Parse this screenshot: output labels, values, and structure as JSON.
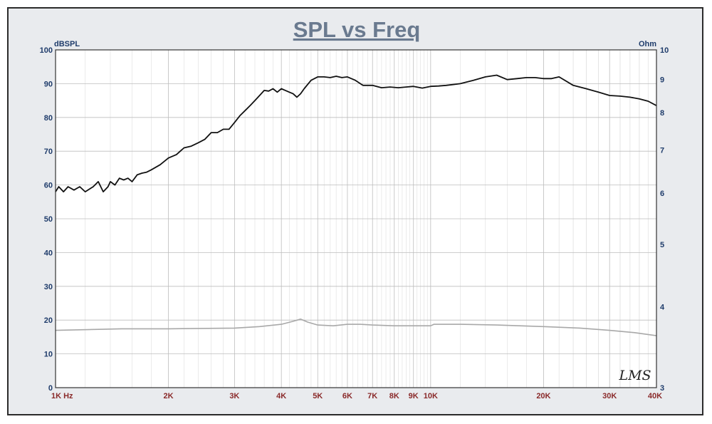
{
  "chart_data": {
    "type": "line",
    "title": "SPL vs Freq",
    "left_axis": {
      "label": "dBSPL",
      "range": [
        0,
        100
      ],
      "ticks": [
        "0",
        "10",
        "20",
        "30",
        "40",
        "50",
        "60",
        "70",
        "80",
        "90",
        "100"
      ]
    },
    "right_axis": {
      "label": "Ohm",
      "scale": "log",
      "range": [
        3,
        10
      ],
      "ticks": [
        "3",
        "4",
        "5",
        "6",
        "7",
        "8",
        "9",
        "10"
      ]
    },
    "x_axis": {
      "scale": "log",
      "range": [
        1000,
        40000
      ],
      "tick_values": [
        1000,
        2000,
        3000,
        4000,
        5000,
        6000,
        7000,
        8000,
        9000,
        10000,
        20000,
        30000,
        40000
      ],
      "tick_labels": [
        "1K  Hz",
        "2K",
        "3K",
        "4K",
        "5K",
        "6K",
        "7K",
        "8K",
        "9K",
        "10K",
        "20K",
        "30K",
        "40K"
      ]
    },
    "grid": true,
    "series": [
      {
        "color": "#111111",
        "axis": "left",
        "x": [
          1000,
          1020,
          1050,
          1080,
          1120,
          1160,
          1200,
          1260,
          1300,
          1340,
          1380,
          1400,
          1440,
          1480,
          1520,
          1560,
          1600,
          1650,
          1700,
          1750,
          1800,
          1900,
          2000,
          2100,
          2200,
          2300,
          2400,
          2500,
          2600,
          2700,
          2800,
          2900,
          3000,
          3100,
          3200,
          3300,
          3400,
          3500,
          3600,
          3700,
          3800,
          3900,
          4000,
          4100,
          4200,
          4300,
          4400,
          4500,
          4600,
          4800,
          5000,
          5200,
          5400,
          5600,
          5800,
          6000,
          6300,
          6600,
          7000,
          7400,
          7800,
          8200,
          8600,
          9000,
          9500,
          10000,
          10500,
          11000,
          12000,
          13000,
          14000,
          15000,
          16000,
          17000,
          18000,
          19000,
          20000,
          21000,
          22000,
          24000,
          26000,
          28000,
          30000,
          32000,
          34000,
          36000,
          38000,
          40000
        ],
        "values": [
          58,
          59.5,
          58,
          59.5,
          58.5,
          59.5,
          58,
          59.5,
          61,
          58,
          59.5,
          61,
          60,
          62,
          61.5,
          62,
          61,
          63,
          63.5,
          63.8,
          64.5,
          66,
          68,
          69,
          71,
          71.5,
          72.5,
          73.5,
          75.5,
          75.5,
          76.5,
          76.5,
          78.5,
          80.5,
          82,
          83.5,
          85,
          86.5,
          88,
          87.8,
          88.5,
          87.5,
          88.5,
          88,
          87.5,
          87,
          86,
          87,
          88.5,
          91,
          92,
          92,
          91.8,
          92.2,
          91.8,
          92,
          91,
          89.5,
          89.5,
          88.8,
          89,
          88.8,
          89,
          89.2,
          88.7,
          89.2,
          89.3,
          89.5,
          90,
          91,
          92,
          92.5,
          91.2,
          91.5,
          91.8,
          91.8,
          91.5,
          91.5,
          92,
          89.5,
          88.5,
          87.5,
          86.5,
          86.3,
          86,
          85.5,
          84.8,
          83.5
        ]
      },
      {
        "color": "#a8a8a8",
        "axis": "right",
        "x": [
          1000,
          1500,
          2000,
          3000,
          3500,
          4000,
          4300,
          4500,
          4700,
          5000,
          5500,
          6000,
          6500,
          7000,
          8000,
          9000,
          10000,
          10200,
          12000,
          15000,
          20000,
          25000,
          30000,
          35000,
          40000
        ],
        "values": [
          3.68,
          3.7,
          3.7,
          3.71,
          3.73,
          3.76,
          3.8,
          3.83,
          3.79,
          3.75,
          3.74,
          3.76,
          3.76,
          3.75,
          3.74,
          3.74,
          3.74,
          3.76,
          3.76,
          3.75,
          3.73,
          3.71,
          3.68,
          3.65,
          3.61
        ]
      }
    ],
    "logo": "LMS"
  }
}
